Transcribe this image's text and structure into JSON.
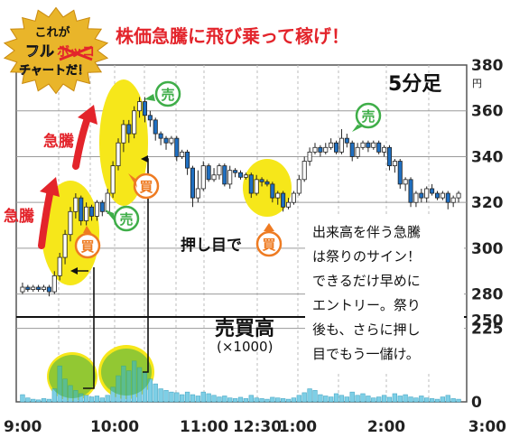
{
  "badge": {
    "line1": "これが",
    "line2": "フル",
    "line2_struck": "ボッコ",
    "line3": "チャートだ！"
  },
  "headline": "株価急騰に飛び乗って稼げ！",
  "interval_label": "5分足",
  "volume_title": "売買高",
  "volume_unit": "(×1000)",
  "annotations": {
    "surge1": "急騰",
    "surge2": "急騰",
    "buy": "買",
    "sell": "売",
    "pullback": "押し目で",
    "note": [
      "出来高を伴う急騰",
      "は祭りのサイン！",
      "できるだけ早めに",
      "エントリー。祭り",
      "後も、さらに押し",
      "目でもう一儲け。"
    ]
  },
  "colors": {
    "up": "#ffffff",
    "down": "#1f6fc1",
    "volume": "#7ecfe6",
    "highlight": "#f6e71a",
    "sell_circle": "#3fae49",
    "buy_circle": "#ee7b22",
    "arrow": "#e3242b"
  },
  "chart_data": {
    "type": "candlestick",
    "price_axis": {
      "unit": "円",
      "ticks": [
        280,
        300,
        320,
        340,
        360,
        380
      ],
      "range": [
        270,
        380
      ]
    },
    "volume_axis": {
      "ticks": [
        0,
        225,
        250
      ],
      "range": [
        0,
        260
      ]
    },
    "x_ticks": [
      "9:00",
      "10:00",
      "11:00",
      "12:30",
      "1:00",
      "2:00",
      "3:00"
    ],
    "candles": [
      {
        "o": 281,
        "c": 283,
        "h": 285,
        "l": 280
      },
      {
        "o": 283,
        "c": 282,
        "h": 284,
        "l": 281
      },
      {
        "o": 282,
        "c": 283,
        "h": 284,
        "l": 281
      },
      {
        "o": 283,
        "c": 282,
        "h": 284,
        "l": 281
      },
      {
        "o": 282,
        "c": 283,
        "h": 284,
        "l": 281
      },
      {
        "o": 283,
        "c": 281,
        "h": 284,
        "l": 279
      },
      {
        "o": 281,
        "c": 288,
        "h": 290,
        "l": 280
      },
      {
        "o": 288,
        "c": 296,
        "h": 298,
        "l": 286
      },
      {
        "o": 296,
        "c": 306,
        "h": 308,
        "l": 293
      },
      {
        "o": 306,
        "c": 316,
        "h": 318,
        "l": 303
      },
      {
        "o": 316,
        "c": 322,
        "h": 324,
        "l": 313
      },
      {
        "o": 322,
        "c": 312,
        "h": 323,
        "l": 310
      },
      {
        "o": 312,
        "c": 318,
        "h": 320,
        "l": 310
      },
      {
        "o": 318,
        "c": 314,
        "h": 319,
        "l": 312
      },
      {
        "o": 314,
        "c": 320,
        "h": 321,
        "l": 312
      },
      {
        "o": 320,
        "c": 316,
        "h": 321,
        "l": 314
      },
      {
        "o": 316,
        "c": 324,
        "h": 326,
        "l": 315
      },
      {
        "o": 324,
        "c": 336,
        "h": 338,
        "l": 322
      },
      {
        "o": 336,
        "c": 346,
        "h": 348,
        "l": 334
      },
      {
        "o": 346,
        "c": 354,
        "h": 356,
        "l": 342
      },
      {
        "o": 354,
        "c": 350,
        "h": 356,
        "l": 346
      },
      {
        "o": 350,
        "c": 360,
        "h": 362,
        "l": 348
      },
      {
        "o": 360,
        "c": 364,
        "h": 366,
        "l": 357
      },
      {
        "o": 364,
        "c": 358,
        "h": 366,
        "l": 355
      },
      {
        "o": 358,
        "c": 356,
        "h": 360,
        "l": 353
      },
      {
        "o": 356,
        "c": 350,
        "h": 357,
        "l": 347
      },
      {
        "o": 350,
        "c": 348,
        "h": 351,
        "l": 345
      },
      {
        "o": 348,
        "c": 346,
        "h": 349,
        "l": 343
      },
      {
        "o": 346,
        "c": 348,
        "h": 349,
        "l": 345
      },
      {
        "o": 348,
        "c": 340,
        "h": 349,
        "l": 338
      },
      {
        "o": 340,
        "c": 342,
        "h": 343,
        "l": 339
      },
      {
        "o": 342,
        "c": 335,
        "h": 343,
        "l": 332
      },
      {
        "o": 335,
        "c": 322,
        "h": 336,
        "l": 318
      },
      {
        "o": 322,
        "c": 326,
        "h": 334,
        "l": 320
      },
      {
        "o": 326,
        "c": 336,
        "h": 338,
        "l": 325
      },
      {
        "o": 336,
        "c": 330,
        "h": 337,
        "l": 329
      },
      {
        "o": 330,
        "c": 332,
        "h": 335,
        "l": 329
      },
      {
        "o": 332,
        "c": 336,
        "h": 337,
        "l": 330
      },
      {
        "o": 336,
        "c": 328,
        "h": 337,
        "l": 327
      },
      {
        "o": 328,
        "c": 334,
        "h": 336,
        "l": 326
      },
      {
        "o": 334,
        "c": 333,
        "h": 335,
        "l": 331
      },
      {
        "o": 333,
        "c": 331,
        "h": 334,
        "l": 330
      },
      {
        "o": 331,
        "c": 332,
        "h": 333,
        "l": 330
      },
      {
        "o": 332,
        "c": 324,
        "h": 333,
        "l": 322
      },
      {
        "o": 324,
        "c": 330,
        "h": 332,
        "l": 323
      },
      {
        "o": 330,
        "c": 329,
        "h": 331,
        "l": 327
      },
      {
        "o": 329,
        "c": 328,
        "h": 330,
        "l": 327
      },
      {
        "o": 328,
        "c": 322,
        "h": 329,
        "l": 320
      },
      {
        "o": 322,
        "c": 324,
        "h": 325,
        "l": 319
      },
      {
        "o": 324,
        "c": 318,
        "h": 325,
        "l": 316
      },
      {
        "o": 318,
        "c": 320,
        "h": 322,
        "l": 317
      },
      {
        "o": 320,
        "c": 324,
        "h": 325,
        "l": 319
      },
      {
        "o": 324,
        "c": 330,
        "h": 332,
        "l": 323
      },
      {
        "o": 330,
        "c": 338,
        "h": 340,
        "l": 329
      },
      {
        "o": 338,
        "c": 342,
        "h": 344,
        "l": 336
      },
      {
        "o": 342,
        "c": 344,
        "h": 346,
        "l": 341
      },
      {
        "o": 344,
        "c": 342,
        "h": 345,
        "l": 340
      },
      {
        "o": 342,
        "c": 344,
        "h": 346,
        "l": 341
      },
      {
        "o": 344,
        "c": 346,
        "h": 348,
        "l": 343
      },
      {
        "o": 346,
        "c": 342,
        "h": 347,
        "l": 341
      },
      {
        "o": 342,
        "c": 348,
        "h": 352,
        "l": 341
      },
      {
        "o": 348,
        "c": 346,
        "h": 350,
        "l": 344
      },
      {
        "o": 346,
        "c": 340,
        "h": 347,
        "l": 338
      },
      {
        "o": 340,
        "c": 344,
        "h": 346,
        "l": 339
      },
      {
        "o": 344,
        "c": 346,
        "h": 347,
        "l": 343
      },
      {
        "o": 346,
        "c": 344,
        "h": 347,
        "l": 342
      },
      {
        "o": 344,
        "c": 346,
        "h": 347,
        "l": 343
      },
      {
        "o": 346,
        "c": 342,
        "h": 347,
        "l": 341
      },
      {
        "o": 342,
        "c": 344,
        "h": 345,
        "l": 340
      },
      {
        "o": 344,
        "c": 336,
        "h": 345,
        "l": 334
      },
      {
        "o": 336,
        "c": 338,
        "h": 339,
        "l": 333
      },
      {
        "o": 338,
        "c": 328,
        "h": 339,
        "l": 326
      },
      {
        "o": 328,
        "c": 330,
        "h": 331,
        "l": 325
      },
      {
        "o": 330,
        "c": 320,
        "h": 331,
        "l": 318
      },
      {
        "o": 320,
        "c": 324,
        "h": 325,
        "l": 318
      },
      {
        "o": 324,
        "c": 322,
        "h": 326,
        "l": 320
      },
      {
        "o": 322,
        "c": 326,
        "h": 327,
        "l": 320
      },
      {
        "o": 326,
        "c": 324,
        "h": 328,
        "l": 323
      },
      {
        "o": 324,
        "c": 322,
        "h": 325,
        "l": 321
      },
      {
        "o": 322,
        "c": 324,
        "h": 325,
        "l": 321
      },
      {
        "o": 324,
        "c": 320,
        "h": 325,
        "l": 317
      },
      {
        "o": 320,
        "c": 322,
        "h": 323,
        "l": 318
      },
      {
        "o": 322,
        "c": 324,
        "h": 325,
        "l": 320
      }
    ],
    "volume": [
      22,
      12,
      8,
      6,
      10,
      8,
      40,
      110,
      70,
      50,
      35,
      25,
      20,
      15,
      18,
      12,
      20,
      45,
      80,
      110,
      95,
      125,
      105,
      90,
      70,
      55,
      40,
      35,
      30,
      28,
      22,
      30,
      22,
      18,
      30,
      25,
      20,
      15,
      18,
      12,
      10,
      14,
      10,
      20,
      12,
      10,
      8,
      14,
      12,
      10,
      8,
      12,
      20,
      28,
      40,
      35,
      22,
      18,
      15,
      25,
      20,
      15,
      30,
      20,
      25,
      18,
      12,
      15,
      20,
      14,
      25,
      18,
      22,
      15,
      12,
      18,
      12,
      10,
      8,
      15,
      20,
      10,
      8
    ]
  }
}
